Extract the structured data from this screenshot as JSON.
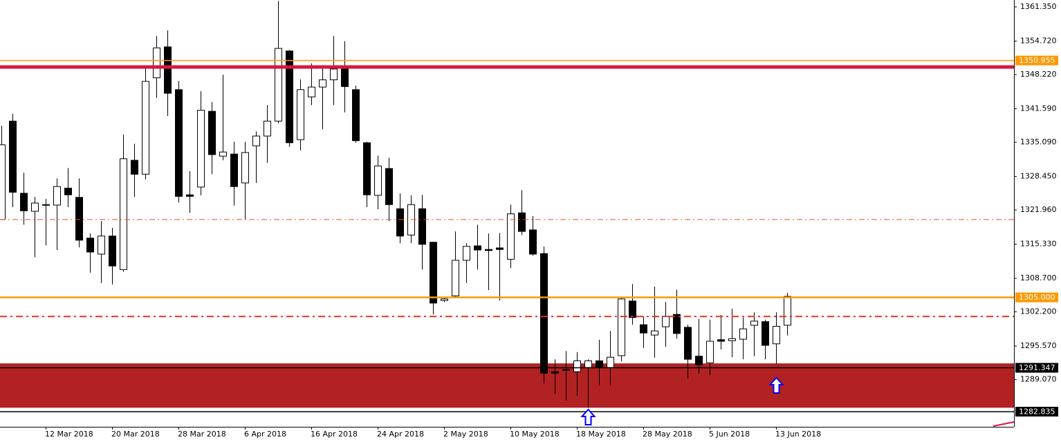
{
  "chart_data": {
    "type": "candlestick",
    "categories": [
      null,
      null,
      null,
      null,
      "12 Mar 2018",
      null,
      null,
      null,
      null,
      null,
      "20 Mar 2018",
      null,
      null,
      null,
      null,
      null,
      "28 Mar 2018",
      null,
      null,
      null,
      null,
      null,
      "6 Apr 2018",
      null,
      null,
      null,
      null,
      null,
      "16 Apr 2018",
      null,
      null,
      null,
      null,
      null,
      "24 Apr 2018",
      null,
      null,
      null,
      null,
      null,
      "2 May 2018",
      null,
      null,
      null,
      null,
      null,
      "10 May 2018",
      null,
      null,
      null,
      null,
      null,
      "18 May 2018",
      null,
      null,
      null,
      null,
      null,
      "28 May 2018",
      null,
      null,
      null,
      null,
      null,
      "5 Jun 2018",
      null,
      null,
      null,
      null,
      null,
      "13 Jun 2018",
      null
    ],
    "open": [
      1320.1,
      1339.2,
      1325.2,
      1321.7,
      1322.9,
      1322.9,
      1326.2,
      1324.4,
      1316.5,
      1313.4,
      1316.9,
      1310.4,
      1331.6,
      1328.9,
      1347.6,
      1353.6,
      1345.3,
      1324.9,
      1326.4,
      1341.1,
      1332.4,
      1332.8,
      1327.2,
      1334.4,
      1336.3,
      1339.2,
      1352.8,
      1335.6,
      1343.9,
      1345.8,
      1347.2,
      1349.3,
      1345.3,
      1335.0,
      1324.8,
      1330.0,
      1322.2,
      1317.1,
      1322.2,
      1315.7,
      1304.4,
      1305.3,
      1312.2,
      1315.0,
      1314.3,
      1314.6,
      1312.4,
      1321.4,
      1318.1,
      1313.5,
      1290.6,
      1290.9,
      1290.6,
      1291.4,
      1292.7,
      1291.4,
      1293.7,
      1304.3,
      1299.7,
      1297.7,
      1299.3,
      1301.7,
      1299.2,
      1293.6,
      1292.3,
      1296.8,
      1296.6,
      1296.9,
      1299.6,
      1300.3,
      1296.0,
      1299.6
    ],
    "high": [
      1338.3,
      1340.6,
      1329.2,
      1324.5,
      1324.1,
      1328.1,
      1330.1,
      1328.1,
      1317.4,
      1319.8,
      1318.5,
      1336.6,
      1334.8,
      1350.0,
      1355.7,
      1356.8,
      1347.0,
      1329.5,
      1345.0,
      1342.9,
      1348.2,
      1335.2,
      1335.2,
      1337.2,
      1342.3,
      1362.5,
      1353.0,
      1347.3,
      1350.4,
      1349.7,
      1355.7,
      1354.7,
      1346.1,
      1335.2,
      1332.5,
      1332.1,
      1325.2,
      1324.8,
      1324.9,
      1315.8,
      1305.1,
      1317.8,
      1315.5,
      1319.1,
      1317.4,
      1317.5,
      1323.0,
      1325.8,
      1320.8,
      1314.9,
      1293.0,
      1294.6,
      1294.4,
      1293.0,
      1296.8,
      1298.5,
      1304.9,
      1307.6,
      1301.3,
      1307.1,
      1304.1,
      1306.5,
      1299.7,
      1300.8,
      1300.7,
      1301.6,
      1302.8,
      1301.1,
      1302.1,
      1300.7,
      1302.1,
      1305.9
    ],
    "low": [
      1320.1,
      1322.5,
      1319.1,
      1312.8,
      1315.1,
      1314.2,
      1322.5,
      1314.7,
      1309.8,
      1307.8,
      1307.5,
      1310.0,
      1324.5,
      1327.9,
      1343.7,
      1340.2,
      1323.4,
      1321.4,
      1324.8,
      1328.9,
      1331.6,
      1322.8,
      1320.1,
      1327.2,
      1331.1,
      1338.8,
      1334.2,
      1333.5,
      1342.3,
      1337.6,
      1342.3,
      1340.9,
      1335.0,
      1322.5,
      1322.1,
      1319.8,
      1315.5,
      1315.5,
      1310.4,
      1301.7,
      1304.1,
      1305.1,
      1307.8,
      1310.4,
      1306.4,
      1304.4,
      1310.7,
      1317.1,
      1313.1,
      1288.3,
      1286.3,
      1285.0,
      1285.9,
      1283.6,
      1287.9,
      1287.9,
      1292.6,
      1299.7,
      1295.2,
      1293.3,
      1295.4,
      1297.0,
      1289.3,
      1290.2,
      1289.9,
      1294.9,
      1293.4,
      1293.0,
      1293.6,
      1293.0,
      1292.1,
      1297.6
    ],
    "close": [
      1334.6,
      1325.4,
      1321.8,
      1323.3,
      1323.0,
      1326.5,
      1324.9,
      1316.1,
      1313.8,
      1316.9,
      1311.1,
      1331.9,
      1328.9,
      1346.9,
      1353.4,
      1344.6,
      1324.6,
      1324.6,
      1341.3,
      1332.7,
      1333.2,
      1326.5,
      1333.1,
      1336.3,
      1339.2,
      1353.3,
      1335.0,
      1345.3,
      1345.8,
      1347.2,
      1349.3,
      1345.9,
      1335.4,
      1324.9,
      1330.5,
      1323.0,
      1316.9,
      1323.0,
      1315.3,
      1303.9,
      1304.7,
      1312.2,
      1314.9,
      1314.2,
      1314.1,
      1314.3,
      1321.2,
      1317.8,
      1313.4,
      1290.3,
      1290.3,
      1291.0,
      1292.7,
      1292.7,
      1291.5,
      1293.4,
      1304.7,
      1301.1,
      1298.1,
      1298.5,
      1301.3,
      1298.0,
      1293.0,
      1291.9,
      1296.5,
      1296.5,
      1297.0,
      1298.9,
      1300.4,
      1295.7,
      1299.4,
      1305.2
    ],
    "up_color": "#ffffff",
    "down_color": "#000000",
    "ylim": [
      1279.9,
      1362.69
    ],
    "yticks": [
      {
        "value": 1361.35,
        "label": "1361.350"
      },
      {
        "value": 1354.72,
        "label": "1354.720"
      },
      {
        "value": 1348.22,
        "label": "1348.220"
      },
      {
        "value": 1341.59,
        "label": "1341.590"
      },
      {
        "value": 1335.09,
        "label": "1335.090"
      },
      {
        "value": 1328.45,
        "label": "1328.450"
      },
      {
        "value": 1321.96,
        "label": "1321.960"
      },
      {
        "value": 1315.33,
        "label": "1315.330"
      },
      {
        "value": 1308.7,
        "label": "1308.700"
      },
      {
        "value": 1302.2,
        "label": "1302.200"
      },
      {
        "value": 1295.57,
        "label": "1295.570"
      },
      {
        "value": 1289.07,
        "label": "1289.070"
      }
    ],
    "zone": {
      "range": [
        1283.6,
        1292.2
      ],
      "color": "#b22222"
    },
    "levels": [
      {
        "value": 1350.955,
        "label": "1350.955",
        "color": "#ff9900",
        "style": "solid"
      },
      {
        "value": 1349.7,
        "color": "#dc143c",
        "style": "thick"
      },
      {
        "value": 1320.1,
        "color": "#e05030",
        "style": "dashdot"
      },
      {
        "value": 1305,
        "label": "1305.000",
        "color": "#ff9900",
        "style": "bold"
      },
      {
        "value": 1301.3,
        "color": "#e03020",
        "style": "dashdot-bold"
      },
      {
        "value": 1291.347,
        "label": "1291.347",
        "color": "#000000",
        "style": "solid"
      },
      {
        "value": 1282.835,
        "label": "1282.835",
        "color": "#000000",
        "style": "solid"
      }
    ]
  }
}
